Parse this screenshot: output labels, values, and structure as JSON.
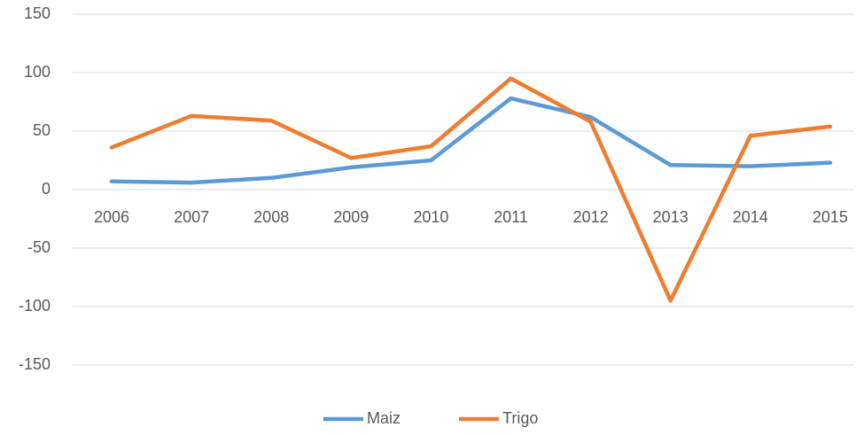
{
  "chart_data": {
    "type": "line",
    "categories": [
      "2006",
      "2007",
      "2008",
      "2009",
      "2010",
      "2011",
      "2012",
      "2013",
      "2014",
      "2015"
    ],
    "series": [
      {
        "name": "Maiz",
        "color": "#5b9bd5",
        "values": [
          7,
          6,
          10,
          19,
          25,
          78,
          62,
          21,
          20,
          23
        ]
      },
      {
        "name": "Trigo",
        "color": "#ed7d31",
        "values": [
          36,
          63,
          59,
          27,
          37,
          95,
          58,
          -95,
          46,
          54
        ]
      }
    ],
    "ylim": [
      -150,
      150
    ],
    "yticks": [
      -150,
      -100,
      -50,
      0,
      50,
      100,
      150
    ],
    "grid": true,
    "legend": "bottom"
  }
}
